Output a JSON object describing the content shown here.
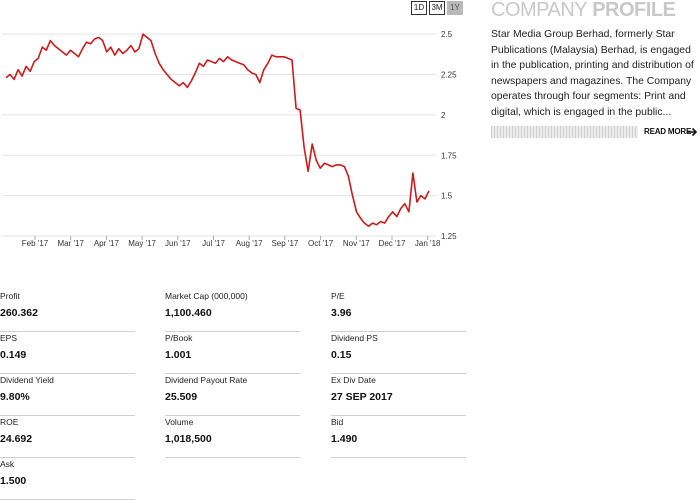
{
  "range_tabs": [
    {
      "label": "1D",
      "active": false
    },
    {
      "label": "3M",
      "active": false
    },
    {
      "label": "1Y",
      "active": true
    }
  ],
  "chart_data": {
    "type": "line",
    "title": "",
    "ylim": [
      1.25,
      2.6
    ],
    "y_ticks": [
      "2.5",
      "2.25",
      "2",
      "1.75",
      "1.5",
      "1.25"
    ],
    "x_ticks": [
      "Feb '17",
      "Mar '17",
      "Apr '17",
      "May '17",
      "Jun '17",
      "Jul '17",
      "Aug '17",
      "Sep '17",
      "Oct '17",
      "Nov '17",
      "Dec '17",
      "Jan '18"
    ],
    "grid": true,
    "line_color": "#cc1b1b",
    "series": [
      {
        "values": [
          2.23,
          2.25,
          2.22,
          2.28,
          2.24,
          2.3,
          2.27,
          2.33,
          2.35,
          2.42,
          2.4,
          2.46,
          2.43,
          2.41,
          2.39,
          2.37,
          2.4,
          2.38,
          2.36,
          2.41,
          2.45,
          2.44,
          2.47,
          2.48,
          2.46,
          2.39,
          2.42,
          2.37,
          2.41,
          2.38,
          2.4,
          2.43,
          2.39,
          2.41,
          2.5,
          2.48,
          2.46,
          2.38,
          2.32,
          2.28,
          2.25,
          2.22,
          2.2,
          2.18,
          2.2,
          2.17,
          2.21,
          2.26,
          2.32,
          2.3,
          2.34,
          2.33,
          2.32,
          2.35,
          2.33,
          2.36,
          2.34,
          2.33,
          2.32,
          2.31,
          2.28,
          2.26,
          2.25,
          2.2,
          2.28,
          2.32,
          2.37,
          2.36,
          2.36,
          2.36,
          2.35,
          2.34,
          2.04,
          2.03,
          1.8,
          1.65,
          1.82,
          1.72,
          1.67,
          1.7,
          1.69,
          1.68,
          1.69,
          1.69,
          1.68,
          1.62,
          1.5,
          1.4,
          1.36,
          1.33,
          1.31,
          1.33,
          1.32,
          1.34,
          1.33,
          1.37,
          1.4,
          1.37,
          1.42,
          1.45,
          1.4,
          1.64,
          1.46,
          1.5,
          1.48,
          1.53
        ]
      }
    ]
  },
  "profile": {
    "title_light": "Company",
    "title_bold": "Profile",
    "description": "Star Media Group Berhad, formerly Star Publications (Malaysia) Berhad, is engaged in the publication, printing and distribution of newspapers and magazines. The Company operates through four segments: Print and digital, which is engaged in the public...",
    "read_more": "READ MORE"
  },
  "stats": [
    {
      "label": "Profit",
      "value": "260.362"
    },
    {
      "label": "Market Cap   (000,000)",
      "value": "1,100.460"
    },
    {
      "label": "P/E",
      "value": "3.96"
    },
    {
      "label": "EPS",
      "value": "0.149"
    },
    {
      "label": "P/Book",
      "value": "1.001"
    },
    {
      "label": "Dividend PS",
      "value": "0.15"
    },
    {
      "label": "Dividend Yield",
      "value": "9.80%"
    },
    {
      "label": "Dividend Payout Rate",
      "value": "25.509"
    },
    {
      "label": "Ex Div Date",
      "value": "27 SEP 2017"
    },
    {
      "label": "ROE",
      "value": "24.692"
    },
    {
      "label": "Volume",
      "value": "1,018,500"
    },
    {
      "label": "Bid",
      "value": "1.490"
    },
    {
      "label": "Ask",
      "value": "1.500"
    }
  ]
}
